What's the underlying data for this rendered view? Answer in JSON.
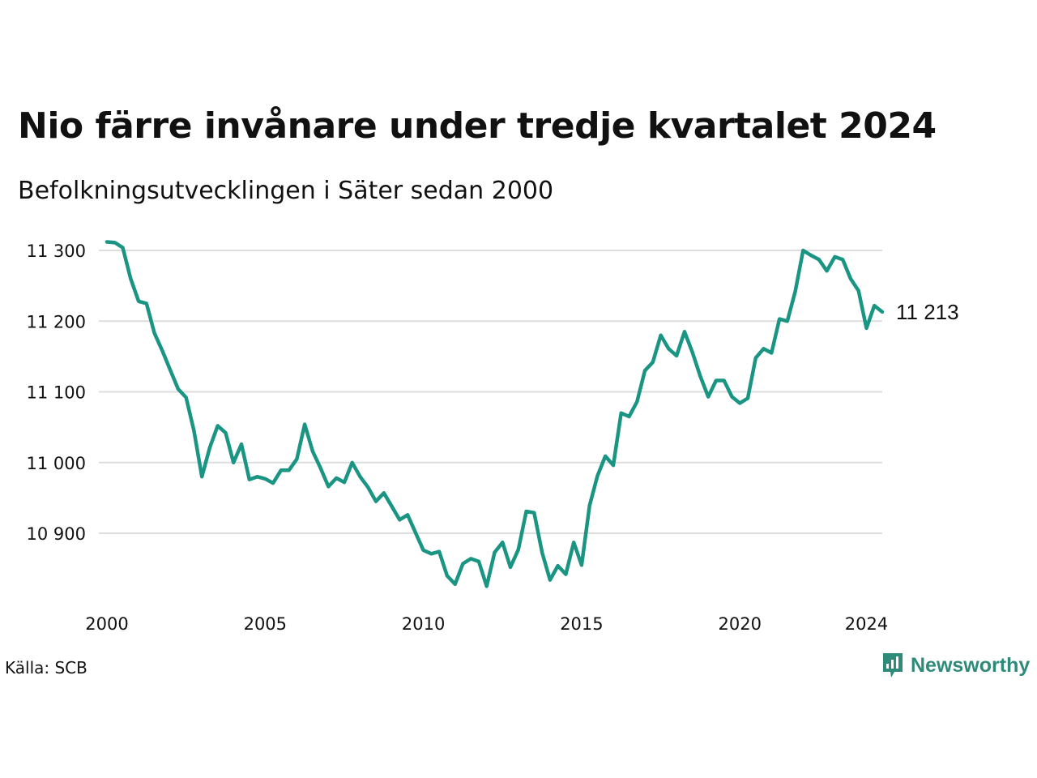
{
  "title": "Nio färre invånare under tredje kvartalet 2024",
  "subtitle": "Befolkningsutvecklingen i Säter sedan 2000",
  "source": "Källa: SCB",
  "brand": {
    "name": "Newsworthy",
    "color": "#2e8b7a"
  },
  "last_value_label": "11 213",
  "colors": {
    "line": "#1b9583",
    "grid": "#dddddd",
    "text": "#111111"
  },
  "chart_data": {
    "type": "line",
    "title": "Nio färre invånare under tredje kvartalet 2024",
    "subtitle": "Befolkningsutvecklingen i Säter sedan 2000",
    "xlabel": "",
    "ylabel": "",
    "ylim": [
      10820,
      11310
    ],
    "xlim": [
      2000,
      2024.75
    ],
    "grid": "horizontal",
    "yticks": [
      10900,
      11000,
      11100,
      11200,
      11300
    ],
    "ytick_labels": [
      "10 900",
      "11 000",
      "11 100",
      "11 200",
      "11 300"
    ],
    "xticks": [
      2000,
      2005,
      2010,
      2015,
      2020,
      2024
    ],
    "xtick_labels": [
      "2000",
      "2005",
      "2010",
      "2015",
      "2020",
      "2024"
    ],
    "x": [
      2000,
      2000.25,
      2000.5,
      2000.75,
      2001,
      2001.25,
      2001.5,
      2001.75,
      2002,
      2002.25,
      2002.5,
      2002.75,
      2003,
      2003.25,
      2003.5,
      2003.75,
      2004,
      2004.25,
      2004.5,
      2004.75,
      2005,
      2005.25,
      2005.5,
      2005.75,
      2006,
      2006.25,
      2006.5,
      2006.75,
      2007,
      2007.25,
      2007.5,
      2007.75,
      2008,
      2008.25,
      2008.5,
      2008.75,
      2009,
      2009.25,
      2009.5,
      2009.75,
      2010,
      2010.25,
      2010.5,
      2010.75,
      2011,
      2011.25,
      2011.5,
      2011.75,
      2012,
      2012.25,
      2012.5,
      2012.75,
      2013,
      2013.25,
      2013.5,
      2013.75,
      2014,
      2014.25,
      2014.5,
      2014.75,
      2015,
      2015.25,
      2015.5,
      2015.75,
      2016,
      2016.25,
      2016.5,
      2016.75,
      2017,
      2017.25,
      2017.5,
      2017.75,
      2018,
      2018.25,
      2018.5,
      2018.75,
      2019,
      2019.25,
      2019.5,
      2019.75,
      2020,
      2020.25,
      2020.5,
      2020.75,
      2021,
      2021.25,
      2021.5,
      2021.75,
      2022,
      2022.25,
      2022.5,
      2022.75,
      2023,
      2023.25,
      2023.5,
      2023.75,
      2024,
      2024.25,
      2024.5
    ],
    "series": [
      {
        "values": [
          11312,
          11311,
          11304,
          11260,
          11228,
          11225,
          11183,
          11158,
          11131,
          11104,
          11092,
          11045,
          10980,
          11021,
          11052,
          11042,
          11000,
          11026,
          10976,
          10980,
          10977,
          10971,
          10989,
          10989,
          11005,
          11054,
          11016,
          10992,
          10966,
          10978,
          10972,
          11000,
          10980,
          10965,
          10945,
          10957,
          10938,
          10919,
          10926,
          10901,
          10876,
          10871,
          10874,
          10840,
          10828,
          10857,
          10864,
          10860,
          10825,
          10873,
          10887,
          10852,
          10877,
          10931,
          10929,
          10873,
          10834,
          10854,
          10842,
          10887,
          10855,
          10939,
          10981,
          11009,
          10996,
          11070,
          11065,
          11086,
          11130,
          11142,
          11180,
          11161,
          11151,
          11185,
          11156,
          11122,
          11093,
          11116,
          11116,
          11093,
          11084,
          11091,
          11148,
          11161,
          11155,
          11203,
          11200,
          11242,
          11300,
          11293,
          11287,
          11271,
          11291,
          11287,
          11260,
          11243,
          11190,
          11222,
          11213
        ]
      }
    ]
  }
}
